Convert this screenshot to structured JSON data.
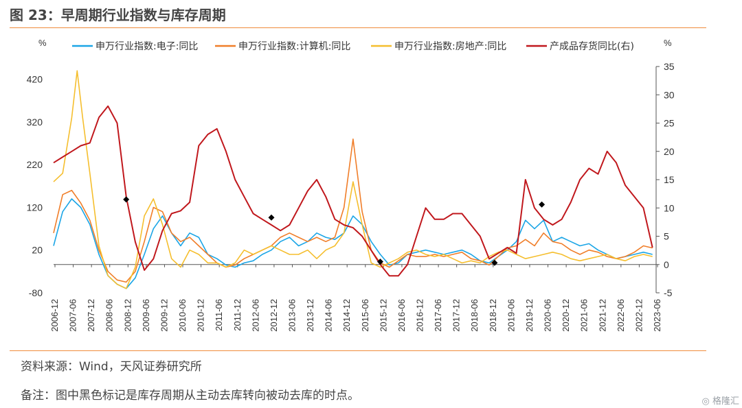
{
  "title": "图 23：早周期行业指数与库存周期",
  "footer": {
    "source": "资料来源：Wind，天风证券研究所",
    "note": "备注：图中黑色标记是库存周期从主动去库转向被动去库的时点。",
    "watermark": "◎ 格隆汇"
  },
  "colors": {
    "electronics": "#1aa5e6",
    "computer": "#f07d28",
    "realestate": "#f5be2d",
    "inventory": "#c0171c",
    "markers": "#000000",
    "rule": "#f08a3a"
  },
  "chart_data": {
    "type": "line",
    "left_axis": {
      "unit": "%",
      "ylim": [
        -80,
        450
      ],
      "ticks": [
        -80,
        20,
        120,
        220,
        320,
        420
      ]
    },
    "right_axis": {
      "unit": "%",
      "ylim": [
        -5,
        35
      ],
      "ticks": [
        -5,
        0,
        5,
        10,
        15,
        20,
        25,
        30,
        35
      ]
    },
    "x_ticks": [
      "2006-12",
      "2007-06",
      "2007-12",
      "2008-06",
      "2008-12",
      "2009-06",
      "2009-12",
      "2010-06",
      "2010-12",
      "2011-06",
      "2011-12",
      "2012-06",
      "2012-12",
      "2013-06",
      "2013-12",
      "2014-06",
      "2014-12",
      "2015-06",
      "2015-12",
      "2016-06",
      "2016-12",
      "2017-06",
      "2017-12",
      "2018-06",
      "2018-12",
      "2019-06",
      "2019-12",
      "2020-06",
      "2020-12",
      "2021-06",
      "2021-12",
      "2022-06",
      "2022-12",
      "2023-06"
    ],
    "legend_position": "top",
    "series": [
      {
        "name": "申万行业指数:电子:同比",
        "axis": "left",
        "color_key": "electronics",
        "x": [
          2006.95,
          2007.2,
          2007.45,
          2007.7,
          2007.95,
          2008.2,
          2008.45,
          2008.7,
          2008.95,
          2009.2,
          2009.45,
          2009.7,
          2009.95,
          2010.2,
          2010.45,
          2010.7,
          2010.95,
          2011.2,
          2011.45,
          2011.7,
          2011.95,
          2012.2,
          2012.45,
          2012.7,
          2012.95,
          2013.2,
          2013.45,
          2013.7,
          2013.95,
          2014.2,
          2014.45,
          2014.7,
          2014.95,
          2015.2,
          2015.45,
          2015.7,
          2015.95,
          2016.2,
          2016.45,
          2016.7,
          2016.95,
          2017.2,
          2017.45,
          2017.7,
          2017.95,
          2018.2,
          2018.45,
          2018.7,
          2018.95,
          2019.2,
          2019.45,
          2019.7,
          2019.95,
          2020.2,
          2020.45,
          2020.7,
          2020.95,
          2021.2,
          2021.45,
          2021.7,
          2021.95,
          2022.2,
          2022.45,
          2022.7,
          2022.95,
          2023.2,
          2023.45
        ],
        "y": [
          30,
          110,
          140,
          120,
          80,
          10,
          -40,
          -60,
          -70,
          -45,
          10,
          70,
          100,
          60,
          30,
          60,
          50,
          10,
          0,
          -15,
          -20,
          -10,
          -5,
          10,
          20,
          40,
          50,
          30,
          40,
          60,
          50,
          45,
          60,
          100,
          80,
          40,
          10,
          -15,
          -10,
          10,
          15,
          20,
          15,
          10,
          15,
          20,
          10,
          -5,
          -10,
          5,
          20,
          40,
          90,
          70,
          90,
          40,
          50,
          40,
          30,
          35,
          20,
          10,
          0,
          5,
          10,
          15,
          10
        ]
      },
      {
        "name": "申万行业指数:计算机:同比",
        "axis": "left",
        "color_key": "computer",
        "x": [
          2006.95,
          2007.2,
          2007.45,
          2007.7,
          2007.95,
          2008.2,
          2008.45,
          2008.7,
          2008.95,
          2009.2,
          2009.45,
          2009.7,
          2009.95,
          2010.2,
          2010.45,
          2010.7,
          2010.95,
          2011.2,
          2011.45,
          2011.7,
          2011.95,
          2012.2,
          2012.45,
          2012.7,
          2012.95,
          2013.2,
          2013.45,
          2013.7,
          2013.95,
          2014.2,
          2014.45,
          2014.7,
          2014.95,
          2015.2,
          2015.45,
          2015.7,
          2015.95,
          2016.2,
          2016.45,
          2016.7,
          2016.95,
          2017.2,
          2017.45,
          2017.7,
          2017.95,
          2018.2,
          2018.45,
          2018.7,
          2018.95,
          2019.2,
          2019.45,
          2019.7,
          2019.95,
          2020.2,
          2020.45,
          2020.7,
          2020.95,
          2021.2,
          2021.45,
          2021.7,
          2021.95,
          2022.2,
          2022.45,
          2022.7,
          2022.95,
          2023.2,
          2023.45
        ],
        "y": [
          60,
          150,
          160,
          130,
          90,
          20,
          -30,
          -50,
          -55,
          -30,
          40,
          120,
          110,
          60,
          40,
          50,
          30,
          10,
          -10,
          -20,
          -15,
          0,
          10,
          20,
          30,
          50,
          60,
          50,
          40,
          50,
          40,
          50,
          120,
          280,
          110,
          20,
          -10,
          -20,
          -5,
          10,
          5,
          5,
          10,
          5,
          10,
          15,
          0,
          -5,
          -15,
          5,
          25,
          30,
          45,
          30,
          60,
          40,
          35,
          20,
          10,
          20,
          15,
          5,
          0,
          5,
          15,
          30,
          25
        ]
      },
      {
        "name": "申万行业指数:房地产:同比",
        "axis": "left",
        "color_key": "realestate",
        "x": [
          2006.95,
          2007.2,
          2007.45,
          2007.6,
          2007.75,
          2007.95,
          2008.2,
          2008.45,
          2008.7,
          2008.95,
          2009.2,
          2009.45,
          2009.7,
          2009.95,
          2010.2,
          2010.45,
          2010.7,
          2010.95,
          2011.2,
          2011.45,
          2011.7,
          2011.95,
          2012.2,
          2012.45,
          2012.7,
          2012.95,
          2013.2,
          2013.45,
          2013.7,
          2013.95,
          2014.2,
          2014.45,
          2014.7,
          2014.95,
          2015.2,
          2015.45,
          2015.7,
          2015.95,
          2016.2,
          2016.45,
          2016.7,
          2016.95,
          2017.2,
          2017.45,
          2017.7,
          2017.95,
          2018.2,
          2018.45,
          2018.7,
          2018.95,
          2019.2,
          2019.45,
          2019.7,
          2019.95,
          2020.2,
          2020.45,
          2020.7,
          2020.95,
          2021.2,
          2021.45,
          2021.7,
          2021.95,
          2022.2,
          2022.45,
          2022.7,
          2022.95,
          2023.2,
          2023.45
        ],
        "y": [
          180,
          200,
          330,
          440,
          330,
          200,
          30,
          -40,
          -60,
          -70,
          -20,
          100,
          140,
          80,
          0,
          -20,
          20,
          10,
          -10,
          -10,
          -20,
          -10,
          20,
          10,
          20,
          30,
          20,
          10,
          10,
          20,
          0,
          20,
          30,
          60,
          180,
          80,
          -10,
          -20,
          -10,
          0,
          15,
          20,
          10,
          5,
          10,
          0,
          -10,
          -5,
          -10,
          5,
          15,
          20,
          10,
          0,
          5,
          10,
          15,
          10,
          0,
          -5,
          0,
          5,
          10,
          0,
          -5,
          5,
          10,
          5
        ]
      },
      {
        "name": "产成品存货同比(右)",
        "axis": "right",
        "color_key": "inventory",
        "x": [
          2006.95,
          2007.2,
          2007.45,
          2007.7,
          2007.95,
          2008.2,
          2008.45,
          2008.7,
          2008.95,
          2009.2,
          2009.45,
          2009.7,
          2009.95,
          2010.2,
          2010.45,
          2010.7,
          2010.95,
          2011.2,
          2011.45,
          2011.7,
          2011.95,
          2012.2,
          2012.45,
          2012.7,
          2012.95,
          2013.2,
          2013.45,
          2013.7,
          2013.95,
          2014.2,
          2014.45,
          2014.7,
          2014.95,
          2015.2,
          2015.45,
          2015.7,
          2015.95,
          2016.2,
          2016.45,
          2016.7,
          2016.95,
          2017.2,
          2017.45,
          2017.7,
          2017.95,
          2018.2,
          2018.45,
          2018.7,
          2018.95,
          2019.2,
          2019.45,
          2019.7,
          2019.95,
          2020.2,
          2020.45,
          2020.7,
          2020.95,
          2021.2,
          2021.45,
          2021.7,
          2021.95,
          2022.2,
          2022.45,
          2022.7,
          2022.95,
          2023.2,
          2023.45
        ],
        "y": [
          18,
          19,
          20,
          21,
          21.5,
          26,
          28,
          25,
          12,
          4,
          -1,
          1,
          6,
          9,
          9.5,
          11,
          21,
          23,
          24,
          20,
          15,
          12,
          9,
          8,
          7,
          6,
          7,
          10,
          13,
          15,
          12,
          8,
          7,
          6.5,
          5,
          2.5,
          0,
          -2,
          -2,
          0,
          5,
          10,
          8,
          8,
          9,
          9,
          7,
          5,
          1,
          2,
          3,
          2,
          15,
          10,
          8,
          7,
          8,
          11,
          15,
          17,
          16,
          20,
          18,
          14,
          12,
          10,
          3
        ]
      }
    ],
    "markers": {
      "name": "库存周期从主动去库转向被动去库的时点",
      "axis": "right",
      "x": [
        2008.95,
        2012.95,
        2015.95,
        2019.1,
        2020.4
      ],
      "y": [
        11.5,
        8.3,
        0.5,
        0.3,
        10.6
      ]
    }
  }
}
